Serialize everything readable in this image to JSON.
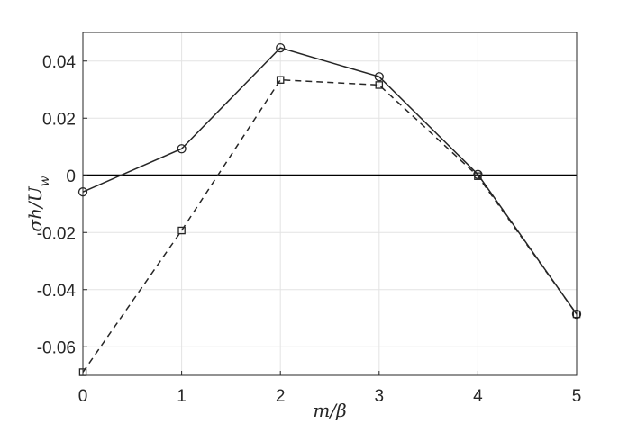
{
  "chart_data": {
    "type": "line",
    "xlabel": "m/β",
    "ylabel": "σh/U_w",
    "xlim": [
      0,
      5
    ],
    "ylim": [
      -0.07,
      0.05
    ],
    "xticks": [
      0,
      1,
      2,
      3,
      4,
      5
    ],
    "xtick_labels": [
      "0",
      "1",
      "2",
      "3",
      "4",
      "5"
    ],
    "yticks": [
      -0.06,
      -0.04,
      -0.02,
      0,
      0.02,
      0.04
    ],
    "ytick_labels": [
      "-0.06",
      "-0.04",
      "-0.02",
      "0",
      "0.02",
      "0.04"
    ],
    "grid": true,
    "reference_line_y": 0,
    "series": [
      {
        "style": "solid",
        "marker": "circle",
        "color": "#262626",
        "x": [
          0,
          1,
          2,
          3,
          4,
          5
        ],
        "y": [
          -0.0058,
          0.0093,
          0.0446,
          0.0345,
          0.0003,
          -0.0486
        ]
      },
      {
        "style": "dashed",
        "marker": "square",
        "color": "#262626",
        "x": [
          0,
          1,
          2,
          3,
          4,
          5
        ],
        "y": [
          -0.0689,
          -0.0193,
          0.0334,
          0.0316,
          -0.0003,
          -0.0486
        ]
      }
    ]
  }
}
